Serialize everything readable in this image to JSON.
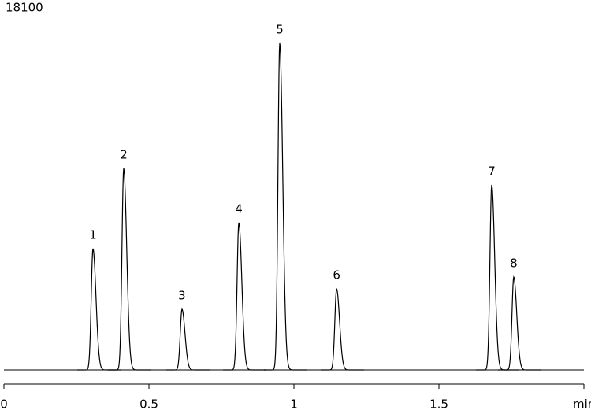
{
  "chart_data": {
    "type": "chromatogram",
    "x": [
      0.307,
      0.413,
      0.614,
      0.81,
      0.951,
      1.147,
      1.682,
      1.758
    ],
    "values": [
      6060,
      10070,
      3030,
      7360,
      16330,
      4050,
      9250,
      4640
    ],
    "peak_labels": [
      "1",
      "2",
      "3",
      "4",
      "5",
      "6",
      "7",
      "8"
    ],
    "color": "#000000",
    "xlim": [
      0,
      2
    ],
    "xticks": [
      0,
      0.5,
      1,
      1.5,
      {
        "value": 2,
        "label": "min"
      }
    ],
    "ylim": [
      0,
      18100
    ],
    "yticks": [
      18100
    ]
  }
}
